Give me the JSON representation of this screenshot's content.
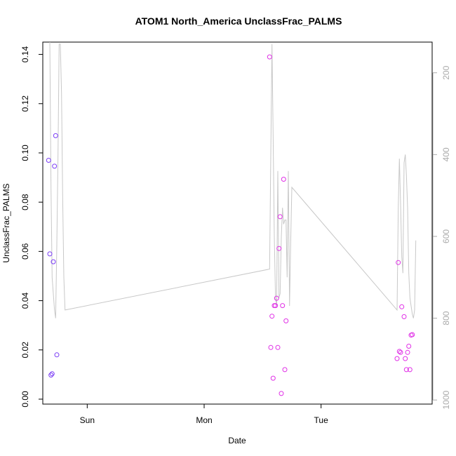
{
  "chart_data": {
    "type": "scatter",
    "title": "ATOM1 North_America UnclassFrac_PALMS",
    "xlabel": "Date",
    "ylabel": "UnclassFrac_PALMS",
    "x_ticks": [
      {
        "label": "Sun",
        "day": 1.0
      },
      {
        "label": "Mon",
        "day": 2.0
      },
      {
        "label": "Tue",
        "day": 3.0
      }
    ],
    "xlim": [
      0.62,
      3.95
    ],
    "ylim": [
      -0.002,
      0.145
    ],
    "y_ticks": [
      0.0,
      0.02,
      0.04,
      0.06,
      0.08,
      0.1,
      0.12,
      0.14
    ],
    "y_tick_labels": [
      "0.00",
      "0.02",
      "0.04",
      "0.06",
      "0.08",
      "0.10",
      "0.12",
      "0.14"
    ],
    "right_axis": {
      "ticks": [
        200,
        400,
        600,
        800,
        1000
      ],
      "tick_labels": [
        "200",
        "400",
        "600",
        "800",
        "1000"
      ],
      "reversed": true,
      "range": [
        125,
        1010
      ],
      "color": "#aaaaaa"
    },
    "pressure_line": {
      "color": "#c8c8c8",
      "points": [
        [
          0.68,
          120
        ],
        [
          0.69,
          480
        ],
        [
          0.7,
          700
        ],
        [
          0.72,
          780
        ],
        [
          0.73,
          800
        ],
        [
          0.74,
          620
        ],
        [
          0.75,
          400
        ],
        [
          0.76,
          130
        ],
        [
          0.77,
          130
        ],
        [
          0.78,
          250
        ],
        [
          0.79,
          500
        ],
        [
          0.8,
          700
        ],
        [
          0.81,
          780
        ],
        [
          2.56,
          680
        ],
        [
          2.57,
          400
        ],
        [
          2.58,
          130
        ],
        [
          2.59,
          350
        ],
        [
          2.6,
          600
        ],
        [
          2.61,
          750
        ],
        [
          2.62,
          770
        ],
        [
          2.63,
          440
        ],
        [
          2.64,
          750
        ],
        [
          2.65,
          740
        ],
        [
          2.66,
          600
        ],
        [
          2.67,
          530
        ],
        [
          2.68,
          570
        ],
        [
          2.69,
          560
        ],
        [
          2.7,
          560
        ],
        [
          2.71,
          700
        ],
        [
          2.72,
          440
        ],
        [
          2.73,
          770
        ],
        [
          2.74,
          620
        ],
        [
          2.75,
          480
        ],
        [
          3.65,
          780
        ],
        [
          3.66,
          530
        ],
        [
          3.67,
          410
        ],
        [
          3.68,
          520
        ],
        [
          3.69,
          650
        ],
        [
          3.7,
          690
        ],
        [
          3.71,
          420
        ],
        [
          3.72,
          400
        ],
        [
          3.73,
          450
        ],
        [
          3.74,
          530
        ],
        [
          3.75,
          690
        ],
        [
          3.76,
          750
        ],
        [
          3.77,
          770
        ],
        [
          3.78,
          790
        ],
        [
          3.79,
          800
        ],
        [
          3.8,
          780
        ],
        [
          3.81,
          610
        ]
      ]
    },
    "series": [
      {
        "color": "#7a3cf5",
        "points": [
          [
            0.67,
            0.097
          ],
          [
            0.68,
            0.059
          ],
          [
            0.69,
            0.0098
          ],
          [
            0.7,
            0.0103
          ],
          [
            0.71,
            0.0558
          ],
          [
            0.72,
            0.0946
          ],
          [
            0.73,
            0.107
          ],
          [
            0.74,
            0.018
          ]
        ]
      },
      {
        "color": "#e030e6",
        "points": [
          [
            2.56,
            0.139
          ],
          [
            2.57,
            0.021
          ],
          [
            2.58,
            0.0337
          ],
          [
            2.59,
            0.0085
          ],
          [
            2.6,
            0.038
          ],
          [
            2.61,
            0.038
          ],
          [
            2.62,
            0.041
          ],
          [
            2.63,
            0.021
          ],
          [
            2.64,
            0.0612
          ],
          [
            2.65,
            0.0741
          ],
          [
            2.66,
            0.0023
          ],
          [
            2.67,
            0.038
          ],
          [
            2.68,
            0.0893
          ],
          [
            2.69,
            0.012
          ],
          [
            2.7,
            0.0318
          ],
          [
            3.65,
            0.0165
          ],
          [
            3.66,
            0.0555
          ],
          [
            3.67,
            0.0194
          ],
          [
            3.68,
            0.019
          ],
          [
            3.69,
            0.0375
          ],
          [
            3.71,
            0.0335
          ],
          [
            3.72,
            0.0165
          ],
          [
            3.73,
            0.012
          ],
          [
            3.74,
            0.019
          ],
          [
            3.75,
            0.0215
          ],
          [
            3.76,
            0.012
          ],
          [
            3.77,
            0.026
          ],
          [
            3.78,
            0.0262
          ]
        ]
      }
    ]
  }
}
